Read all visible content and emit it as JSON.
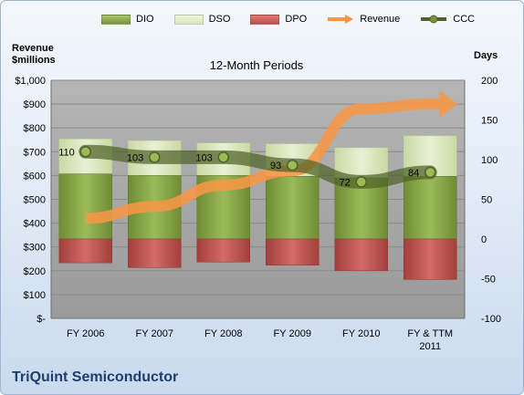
{
  "chart_data": {
    "type": "bar",
    "subtitle": "12-Month Periods",
    "company": "TriQuint Semiconductor",
    "left_axis_title": [
      "Revenue",
      "$millions"
    ],
    "right_axis_title": "Days",
    "categories": [
      "FY 2006",
      "FY 2007",
      "FY 2008",
      "FY 2009",
      "FY 2010",
      "FY & TTM 2011"
    ],
    "left_axis": {
      "min": 0,
      "max": 1000,
      "ticks": [
        "$-",
        "$100",
        "$200",
        "$300",
        "$400",
        "$500",
        "$600",
        "$700",
        "$800",
        "$900",
        "$1,000"
      ]
    },
    "right_axis": {
      "min": -100,
      "max": 200,
      "ticks": [
        "-100",
        "-50",
        "0",
        "50",
        "100",
        "150",
        "200"
      ]
    },
    "series": [
      {
        "name": "DIO",
        "axis": "days",
        "color": "#77933c",
        "values": [
          82,
          80,
          80,
          79,
          77,
          79
        ]
      },
      {
        "name": "DSO",
        "axis": "days",
        "color": "#d7e4bd",
        "values": [
          44,
          44,
          41,
          41,
          38,
          51
        ]
      },
      {
        "name": "DPO",
        "axis": "days",
        "color": "#c0504d",
        "values": [
          -30,
          -36,
          -29,
          -33,
          -40,
          -51
        ]
      },
      {
        "name": "Revenue",
        "axis": "dollars",
        "color": "#f79646",
        "values": [
          420,
          470,
          560,
          620,
          880,
          900
        ]
      },
      {
        "name": "CCC",
        "axis": "days",
        "color": "#4f6228",
        "values": [
          110,
          103,
          103,
          93,
          72,
          84
        ],
        "labels": [
          "110",
          "103",
          "103",
          "93",
          "72",
          "84"
        ]
      }
    ],
    "grid": true,
    "legend_position": "top"
  }
}
